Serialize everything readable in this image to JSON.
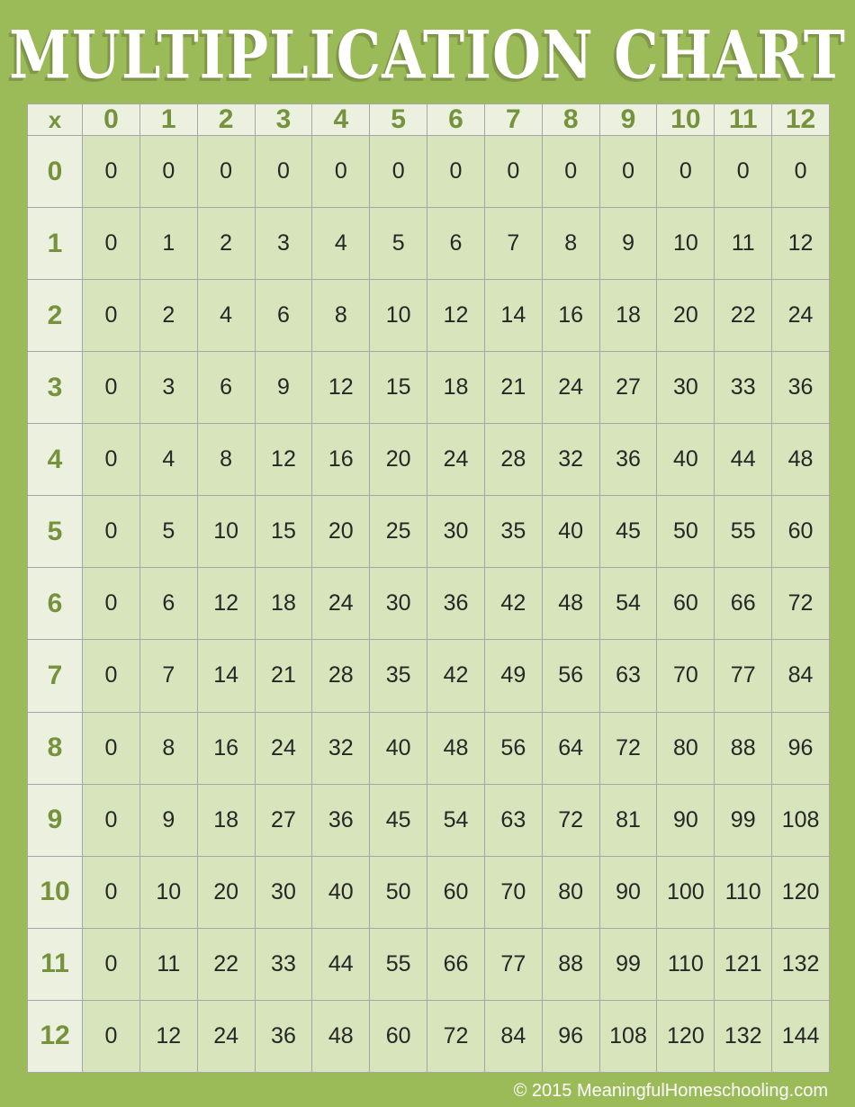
{
  "title": "MULTIPLICATION CHART",
  "footer": {
    "copyright": "© 2015 MeaningfulHomeschooling.com"
  },
  "colors": {
    "background_green": "#9BBB59",
    "header_cell_bg": "#EBF1DE",
    "data_cell_bg": "#D7E4BC",
    "header_text_green": "#76923C",
    "data_text": "#262626",
    "grid_line": "#A6A6A6",
    "title_text": "#FFFFFF"
  },
  "chart_data": {
    "type": "table",
    "title": "MULTIPLICATION CHART",
    "corner_label": "x",
    "column_headers": [
      "0",
      "1",
      "2",
      "3",
      "4",
      "5",
      "6",
      "7",
      "8",
      "9",
      "10",
      "11",
      "12"
    ],
    "row_headers": [
      "0",
      "1",
      "2",
      "3",
      "4",
      "5",
      "6",
      "7",
      "8",
      "9",
      "10",
      "11",
      "12"
    ],
    "rows": [
      [
        0,
        0,
        0,
        0,
        0,
        0,
        0,
        0,
        0,
        0,
        0,
        0,
        0
      ],
      [
        0,
        1,
        2,
        3,
        4,
        5,
        6,
        7,
        8,
        9,
        10,
        11,
        12
      ],
      [
        0,
        2,
        4,
        6,
        8,
        10,
        12,
        14,
        16,
        18,
        20,
        22,
        24
      ],
      [
        0,
        3,
        6,
        9,
        12,
        15,
        18,
        21,
        24,
        27,
        30,
        33,
        36
      ],
      [
        0,
        4,
        8,
        12,
        16,
        20,
        24,
        28,
        32,
        36,
        40,
        44,
        48
      ],
      [
        0,
        5,
        10,
        15,
        20,
        25,
        30,
        35,
        40,
        45,
        50,
        55,
        60
      ],
      [
        0,
        6,
        12,
        18,
        24,
        30,
        36,
        42,
        48,
        54,
        60,
        66,
        72
      ],
      [
        0,
        7,
        14,
        21,
        28,
        35,
        42,
        49,
        56,
        63,
        70,
        77,
        84
      ],
      [
        0,
        8,
        16,
        24,
        32,
        40,
        48,
        56,
        64,
        72,
        80,
        88,
        96
      ],
      [
        0,
        9,
        18,
        27,
        36,
        45,
        54,
        63,
        72,
        81,
        90,
        99,
        108
      ],
      [
        0,
        10,
        20,
        30,
        40,
        50,
        60,
        70,
        80,
        90,
        100,
        110,
        120
      ],
      [
        0,
        11,
        22,
        33,
        44,
        55,
        66,
        77,
        88,
        99,
        110,
        121,
        132
      ],
      [
        0,
        12,
        24,
        36,
        48,
        60,
        72,
        84,
        96,
        108,
        120,
        132,
        144
      ]
    ]
  }
}
